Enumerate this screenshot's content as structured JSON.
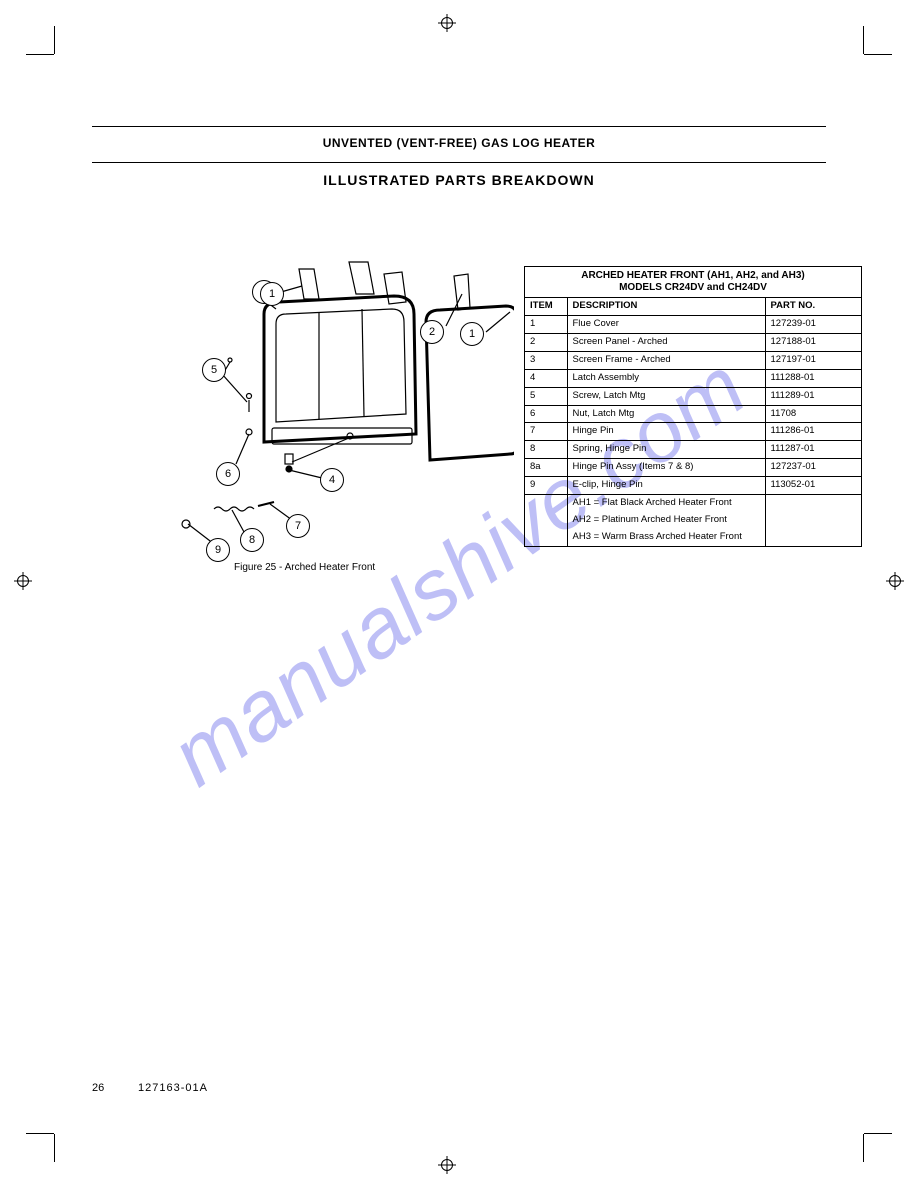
{
  "watermark": "manualshive.com",
  "header": {
    "subhead": "UNVENTED (VENT-FREE) GAS LOG HEATER",
    "title": "ILLUSTRATED PARTS BREAKDOWN"
  },
  "figure_caption": "Figure 25 - Arched Heater Front",
  "page_number": "26",
  "doc_id": "127163-01A",
  "parts_table": {
    "title_line1": "ARCHED HEATER FRONT (AH1, AH2, and AH3)",
    "title_line2": "MODELS CR24DV and CH24DV",
    "columns": [
      "ITEM",
      "DESCRIPTION",
      "PART NO."
    ],
    "rows": [
      {
        "item": "1",
        "desc": "Flue Cover",
        "part": "127239-01"
      },
      {
        "item": "2",
        "desc": "Screen Panel - Arched",
        "part": "127188-01"
      },
      {
        "item": "3",
        "desc": "Screen Frame - Arched",
        "part": "127197-01"
      },
      {
        "item": "4",
        "desc": "Latch Assembly",
        "part": "111288-01"
      },
      {
        "item": "5",
        "desc": "Screw, Latch Mtg",
        "part": "111289-01"
      },
      {
        "item": "6",
        "desc": "Nut, Latch Mtg",
        "part": "11708"
      },
      {
        "item": "7",
        "desc": "Hinge Pin",
        "part": "111286-01"
      },
      {
        "item": "8",
        "desc": "Spring, Hinge Pin",
        "part": "111287-01"
      },
      {
        "item": "8a",
        "desc": "Hinge Pin Assy (Items 7 & 8)",
        "part": "127237-01"
      },
      {
        "item": "9",
        "desc": "E-clip, Hinge Pin",
        "part": "113052-01"
      },
      {
        "item": "",
        "desc": "AH1 = Flat Black Arched Heater Front",
        "part": "",
        "span": true,
        "sub": [
          "AH2 = Platinum Arched Heater Front",
          "AH3 = Warm Brass Arched Heater Front"
        ]
      }
    ]
  },
  "callouts": [
    "1",
    "2",
    "3",
    "4",
    "5",
    "6",
    "7",
    "8",
    "9"
  ],
  "colors": {
    "line": "#000000",
    "bg": "#ffffff",
    "watermark": "#8a8cf0"
  }
}
